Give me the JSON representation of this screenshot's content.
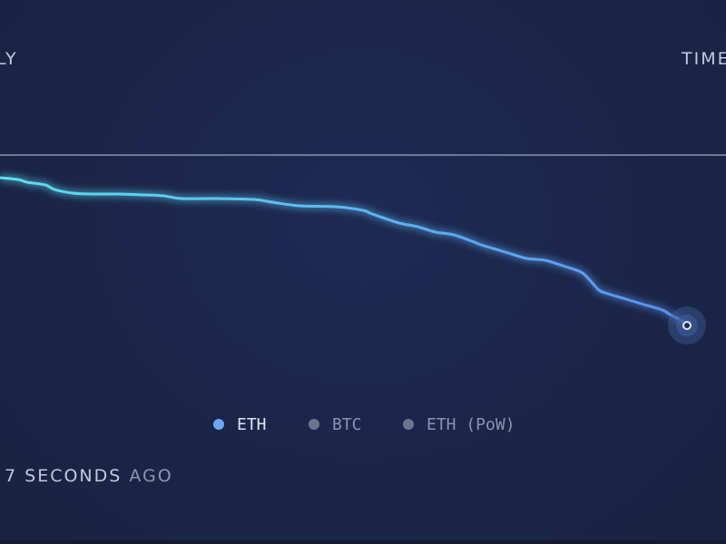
{
  "header": {
    "left_label": "LY",
    "right_label": "TIME"
  },
  "legend": {
    "items": [
      {
        "label": "ETH",
        "color": "#6aa6f5",
        "active": true
      },
      {
        "label": "BTC",
        "color": "#6c7590",
        "active": false
      },
      {
        "label": "ETH (PoW)",
        "color": "#6c7590",
        "active": false
      }
    ]
  },
  "footer": {
    "updated_value": "7 SECONDS",
    "updated_suffix": "AGO"
  },
  "colors": {
    "background": "#1b2548",
    "reference_line": "#b9bfd6",
    "line_start": "#5ee0f0",
    "line_end": "#5b8ff0",
    "marker_halo": "#3f5d99",
    "marker_fill": "#1c2a52",
    "marker_ring": "#dfe8ff"
  },
  "chart_data": {
    "type": "line",
    "title": "",
    "xlabel": "",
    "ylabel": "",
    "grid": false,
    "reference_line": true,
    "current_point_marker": true,
    "series": [
      {
        "name": "ETH",
        "x": [
          0,
          20,
          30,
          50,
          60,
          80,
          100,
          130,
          160,
          180,
          200,
          240,
          280,
          300,
          330,
          370,
          400,
          410,
          440,
          460,
          480,
          500,
          520,
          530,
          550,
          560,
          580,
          600,
          620,
          640,
          650,
          660,
          670,
          690,
          710,
          730,
          740,
          750,
          757
        ],
        "y": [
          196,
          198,
          201,
          204,
          209,
          213,
          214,
          214,
          215,
          216,
          219,
          219,
          220,
          223,
          227,
          228,
          232,
          236,
          246,
          250,
          256,
          259,
          266,
          270,
          276,
          279,
          285,
          287,
          293,
          300,
          309,
          320,
          324,
          330,
          336,
          342,
          348,
          353,
          359
        ]
      }
    ]
  }
}
